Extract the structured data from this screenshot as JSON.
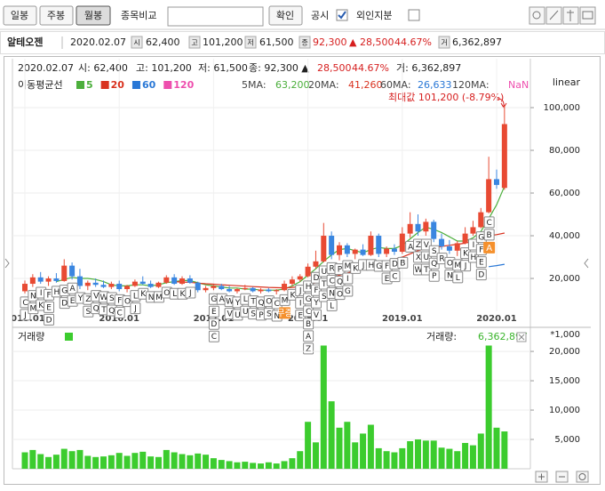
{
  "toolbar": {
    "buttons": [
      "일봉",
      "주봉",
      "월봉"
    ],
    "compare_label": "종목비교",
    "confirm": "확인",
    "disclosure": "공시",
    "foreign": "외인지분"
  },
  "info": {
    "name": "알테오젠",
    "date": "2020.02.07",
    "open_label": "시",
    "open": "62,400",
    "high_label": "고",
    "high": "101,200",
    "low_label": "저",
    "low": "61,500",
    "close_label": "종",
    "close": "92,300",
    "change": "▲ 28,500",
    "change_pct": "44.67%",
    "volume_label": "거",
    "volume": "6,362,897"
  },
  "chart_data": [
    {
      "type": "candlestick",
      "header": [
        "2020.02.07",
        "시: 62,400",
        "고: 101,200",
        "저: 61,500",
        "종: 92,300 ▲",
        "28,500",
        "44.67%",
        "거: 6,362,897"
      ],
      "legend_title": "이동평균선",
      "scale_label": "linear",
      "annotation": "최대값 101,200 (-8.79%)",
      "up_color": "#e84a33",
      "down_color": "#3a86e0",
      "categories": [
        "2015.01",
        null,
        null,
        null,
        null,
        null,
        null,
        null,
        null,
        null,
        null,
        null,
        "2016.01",
        null,
        null,
        null,
        null,
        null,
        null,
        null,
        null,
        null,
        null,
        null,
        "2017.01",
        null,
        null,
        null,
        null,
        null,
        null,
        null,
        null,
        null,
        null,
        null,
        "2018.01",
        null,
        null,
        null,
        null,
        null,
        null,
        null,
        null,
        null,
        null,
        null,
        "2019.01",
        null,
        null,
        null,
        null,
        null,
        null,
        null,
        null,
        null,
        null,
        null,
        "2020.01",
        null
      ],
      "open": [
        14000,
        17500,
        20500,
        18500,
        20000,
        18800,
        26000,
        21000,
        16500,
        18000,
        17000,
        16000,
        17500,
        15000,
        16500,
        18500,
        17500,
        16000,
        18000,
        20500,
        17500,
        20000,
        18000,
        14500,
        15500,
        16500,
        15000,
        14000,
        15000,
        15500,
        14000,
        14800,
        14000,
        14500,
        17500,
        19500,
        21000,
        25500,
        28000,
        40000,
        31000,
        35500,
        31500,
        33500,
        31000,
        40000,
        31500,
        34000,
        32500,
        41000,
        45500,
        42000,
        46500,
        38500,
        35000,
        33000,
        36500,
        41000,
        44000,
        51000,
        66500,
        62400
      ],
      "high": [
        19000,
        22000,
        23000,
        21000,
        22500,
        29000,
        27500,
        24500,
        19000,
        20000,
        19000,
        18500,
        19000,
        17000,
        19500,
        21000,
        19000,
        18500,
        21500,
        22000,
        21000,
        21500,
        18500,
        16500,
        17000,
        17500,
        16500,
        15500,
        17000,
        16000,
        15500,
        15500,
        15000,
        19000,
        21000,
        22000,
        27000,
        33000,
        46000,
        42000,
        37000,
        36500,
        34000,
        36000,
        42000,
        41000,
        35000,
        36000,
        44000,
        51000,
        50000,
        48000,
        47500,
        41000,
        38000,
        37500,
        44000,
        47000,
        53000,
        77000,
        71000,
        101200
      ],
      "low": [
        13000,
        16000,
        17500,
        16500,
        18000,
        18500,
        19500,
        15000,
        14500,
        16000,
        15500,
        15000,
        14000,
        13500,
        16000,
        17000,
        15500,
        15500,
        17500,
        17000,
        17000,
        17500,
        13500,
        13500,
        14500,
        14500,
        13500,
        13000,
        14500,
        13500,
        13000,
        13500,
        12500,
        14000,
        16500,
        18500,
        20500,
        24500,
        27500,
        29000,
        28500,
        30000,
        29000,
        30500,
        30500,
        30000,
        30000,
        31000,
        31500,
        39000,
        40000,
        40000,
        37000,
        33500,
        31500,
        30500,
        36000,
        40000,
        43500,
        50500,
        62000,
        61500
      ],
      "close": [
        17500,
        20500,
        18500,
        20000,
        18800,
        26000,
        21000,
        16500,
        18000,
        17000,
        16000,
        17500,
        15000,
        16500,
        18500,
        17500,
        16000,
        18000,
        20500,
        17500,
        20000,
        18000,
        14500,
        15500,
        16500,
        15000,
        14000,
        15000,
        15500,
        14000,
        14800,
        14000,
        14500,
        17500,
        19500,
        21000,
        25500,
        28000,
        40000,
        31000,
        35500,
        31500,
        33500,
        31000,
        40000,
        31500,
        34000,
        32500,
        41000,
        45500,
        42000,
        46500,
        38500,
        35000,
        33000,
        36500,
        41000,
        44000,
        51000,
        66500,
        63800,
        92300
      ],
      "ma": [
        {
          "name": "5",
          "label": "5MA:",
          "current": "63,200",
          "color": "#4caf3c",
          "values": [
            null,
            null,
            null,
            null,
            18500,
            19500,
            20500,
            20000,
            20000,
            19500,
            18500,
            17000,
            16500,
            16500,
            17000,
            17000,
            16500,
            17000,
            18000,
            18500,
            19000,
            19000,
            18000,
            17000,
            16500,
            16000,
            15500,
            15500,
            15000,
            15000,
            14500,
            14500,
            14500,
            15000,
            16500,
            18500,
            21500,
            24500,
            28000,
            31000,
            33500,
            34000,
            33000,
            32000,
            33500,
            34500,
            34000,
            34000,
            35500,
            38500,
            41500,
            44000,
            43000,
            41500,
            39500,
            37500,
            37500,
            39000,
            42000,
            48000,
            54500,
            63200
          ]
        },
        {
          "name": "20",
          "label": "20MA:",
          "current": "41,260",
          "color": "#d9321f",
          "values": [
            null,
            null,
            null,
            null,
            null,
            null,
            null,
            null,
            null,
            null,
            null,
            null,
            null,
            null,
            null,
            null,
            null,
            null,
            null,
            18500,
            18300,
            18200,
            17800,
            17500,
            17300,
            17000,
            16800,
            16600,
            16400,
            16200,
            16000,
            15800,
            15700,
            15600,
            15800,
            16200,
            17000,
            18000,
            19500,
            20500,
            21500,
            22500,
            23500,
            24500,
            26000,
            27000,
            28000,
            29000,
            30000,
            31500,
            33000,
            34000,
            34500,
            35000,
            35500,
            36000,
            36500,
            37500,
            39000,
            40000,
            40500,
            41260
          ]
        },
        {
          "name": "60",
          "label": "60MA:",
          "current": "26,633",
          "color": "#2a78d6",
          "values": [
            null,
            null,
            null,
            null,
            null,
            null,
            null,
            null,
            null,
            null,
            null,
            null,
            null,
            null,
            null,
            null,
            null,
            null,
            null,
            null,
            null,
            null,
            null,
            null,
            null,
            null,
            null,
            null,
            null,
            null,
            null,
            null,
            null,
            null,
            null,
            null,
            null,
            null,
            null,
            null,
            null,
            null,
            null,
            null,
            null,
            null,
            null,
            null,
            null,
            null,
            null,
            null,
            null,
            null,
            null,
            null,
            null,
            null,
            null,
            25500,
            26000,
            26633
          ]
        },
        {
          "name": "120",
          "label": "120MA:",
          "current": "NaN",
          "color": "#ee4fae",
          "values": [
            null,
            null,
            null,
            null,
            null,
            null,
            null,
            null,
            null,
            null,
            null,
            null,
            null,
            null,
            null,
            null,
            null,
            null,
            null,
            null,
            null,
            null,
            null,
            null,
            null,
            null,
            null,
            null,
            null,
            null,
            null,
            null,
            null,
            null,
            null,
            null,
            null,
            null,
            null,
            null,
            null,
            null,
            null,
            null,
            null,
            null,
            null,
            null,
            null,
            null,
            null,
            null,
            null,
            null,
            null,
            null,
            null,
            null,
            null,
            null,
            null,
            null
          ]
        }
      ],
      "events": [
        [
          "C",
          "J"
        ],
        [
          "N",
          "M"
        ],
        [
          "I",
          "K"
        ],
        [
          "F",
          "E",
          "D"
        ],
        [
          "H"
        ],
        [
          "G",
          "D"
        ],
        [
          "A",
          "E"
        ],
        [
          "Y"
        ],
        [
          "Z",
          "S"
        ],
        [
          "V",
          "Q"
        ],
        [
          "W",
          "T"
        ],
        [
          "S",
          "Q"
        ],
        [
          "F",
          "C"
        ],
        [
          "O"
        ],
        [
          "L",
          "J"
        ],
        [
          "K"
        ],
        [
          "N"
        ],
        [
          "M"
        ],
        [
          "O"
        ],
        [
          "L"
        ],
        [
          "K"
        ],
        [
          "J"
        ],
        [],
        [],
        [
          "G",
          "E",
          "D",
          "C"
        ],
        [
          "A"
        ],
        [
          "W",
          "V"
        ],
        [
          "Y",
          "U"
        ],
        [
          "L",
          "U"
        ],
        [
          "T",
          "S"
        ],
        [
          "Q",
          "P"
        ],
        [
          "O",
          "S"
        ],
        [
          "C",
          "N"
        ],
        [
          "M"
        ],
        [
          "K"
        ],
        [
          "J",
          "I",
          "E"
        ],
        [
          "H",
          "G",
          "C",
          "B",
          "A",
          "Z"
        ],
        [
          "D",
          "F",
          "Y",
          "V"
        ],
        [
          "U",
          "T",
          "S"
        ],
        [
          "R",
          "C",
          "N",
          "L"
        ],
        [
          "P",
          "Q",
          "O"
        ],
        [
          "M",
          "I",
          "G"
        ],
        [
          "K"
        ],
        [
          "J"
        ],
        [
          "H"
        ],
        [
          "G"
        ],
        [
          "F",
          "E"
        ],
        [
          "D",
          "C"
        ],
        [
          "B"
        ],
        [
          "A"
        ],
        [
          "Z",
          "X",
          "W"
        ],
        [
          "V",
          "U",
          "T"
        ],
        [
          "S",
          "Q",
          "P"
        ],
        [
          "R"
        ],
        [
          "O",
          "N"
        ],
        [
          "M",
          "L"
        ],
        [
          "K",
          "J"
        ],
        [
          "I",
          "H"
        ],
        [
          "G",
          "F",
          "E",
          "D"
        ],
        [
          "C",
          "B"
        ],
        [],
        []
      ],
      "notes": [
        null,
        null,
        null,
        null,
        null,
        null,
        null,
        null,
        null,
        null,
        null,
        null,
        null,
        null,
        null,
        null,
        null,
        null,
        null,
        null,
        null,
        null,
        null,
        null,
        null,
        null,
        null,
        null,
        null,
        null,
        null,
        null,
        null,
        "무증",
        null,
        null,
        null,
        null,
        null,
        null,
        null,
        null,
        null,
        null,
        null,
        null,
        null,
        null,
        null,
        null,
        null,
        null,
        null,
        null,
        null,
        null,
        null,
        null,
        null,
        "A",
        null,
        null
      ],
      "ylim": [
        4600,
        115000
      ],
      "yticks": [
        {
          "value": 20000,
          "label": "20,000"
        },
        {
          "value": 40000,
          "label": "40,000"
        },
        {
          "value": 60000,
          "label": "60,000"
        },
        {
          "value": 80000,
          "label": "80,000"
        },
        {
          "value": 100000,
          "label": "100,000"
        }
      ],
      "grid": true
    },
    {
      "type": "bar",
      "title": "거래량",
      "readout_label": "거래량:",
      "readout": "6,362,897",
      "unit_label": "*1,000",
      "color": "#3ccc2e",
      "values": [
        2800,
        3200,
        2500,
        2000,
        2400,
        3400,
        3000,
        3200,
        2200,
        2000,
        2100,
        2300,
        2700,
        2200,
        2700,
        2900,
        2100,
        2000,
        3200,
        2800,
        2500,
        2300,
        2600,
        2400,
        1800,
        1500,
        1300,
        1100,
        1200,
        1000,
        900,
        1100,
        900,
        1300,
        1800,
        3000,
        8000,
        4500,
        21000,
        11500,
        7000,
        8000,
        4500,
        6000,
        7500,
        3500,
        3000,
        2800,
        3500,
        4700,
        5000,
        4800,
        4800,
        3600,
        3400,
        3000,
        4400,
        4000,
        6000,
        21000,
        7000,
        6362.897
      ],
      "ylim": [
        0,
        23800
      ],
      "yticks": [
        {
          "value": 5000,
          "label": "5,000"
        },
        {
          "value": 10000,
          "label": "10,000"
        },
        {
          "value": 15000,
          "label": "15,000"
        },
        {
          "value": 20000,
          "label": "20,000"
        }
      ],
      "grid": true
    }
  ]
}
